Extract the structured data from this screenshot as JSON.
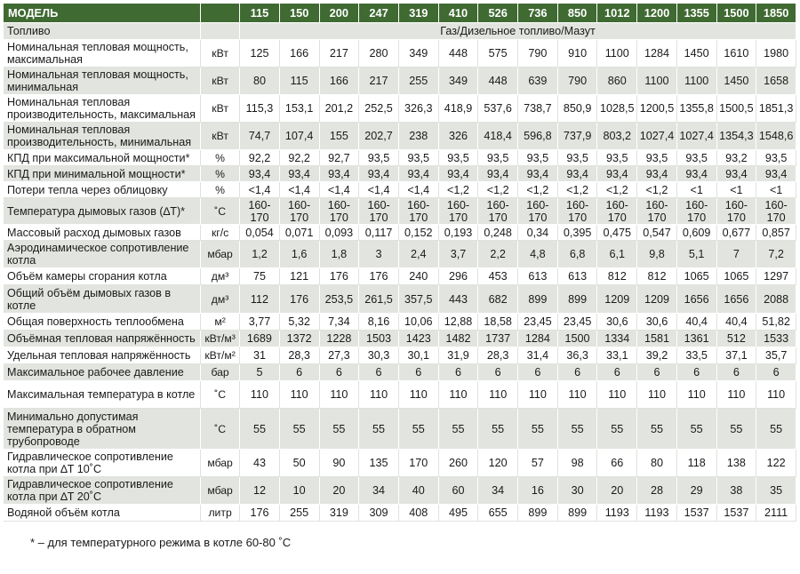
{
  "header": {
    "model_label": "МОДЕЛЬ",
    "models": [
      "115",
      "150",
      "200",
      "247",
      "319",
      "410",
      "526",
      "736",
      "850",
      "1012",
      "1200",
      "1355",
      "1500",
      "1850"
    ]
  },
  "fuel_row": {
    "label": "Топливо",
    "value": "Газ/Дизельное топливо/Мазут"
  },
  "rows": [
    {
      "label": "Номинальная тепловая мощность, максимальная",
      "unit": "кВт",
      "values": [
        "125",
        "166",
        "217",
        "280",
        "349",
        "448",
        "575",
        "790",
        "910",
        "1100",
        "1284",
        "1450",
        "1610",
        "1980"
      ]
    },
    {
      "label": "Номинальная тепловая мощность, минимальная",
      "unit": "кВт",
      "values": [
        "80",
        "115",
        "166",
        "217",
        "255",
        "349",
        "448",
        "639",
        "790",
        "860",
        "1100",
        "1100",
        "1450",
        "1658"
      ]
    },
    {
      "label": "Номинальная тепловая производительность, максимальная",
      "unit": "кВт",
      "values": [
        "115,3",
        "153,1",
        "201,2",
        "252,5",
        "326,3",
        "418,9",
        "537,6",
        "738,7",
        "850,9",
        "1028,5",
        "1200,5",
        "1355,8",
        "1500,5",
        "1851,3"
      ]
    },
    {
      "label": "Номинальная тепловая производительность, минимальная",
      "unit": "кВт",
      "values": [
        "74,7",
        "107,4",
        "155",
        "202,7",
        "238",
        "326",
        "418,4",
        "596,8",
        "737,9",
        "803,2",
        "1027,4",
        "1027,4",
        "1354,3",
        "1548,6"
      ]
    },
    {
      "label": "КПД при максимальной мощности*",
      "unit": "%",
      "values": [
        "92,2",
        "92,2",
        "92,7",
        "93,5",
        "93,5",
        "93,5",
        "93,5",
        "93,5",
        "93,5",
        "93,5",
        "93,5",
        "93,5",
        "93,2",
        "93,5"
      ]
    },
    {
      "label": "КПД при минимальной мощности*",
      "unit": "%",
      "values": [
        "93,4",
        "93,4",
        "93,4",
        "93,4",
        "93,4",
        "93,4",
        "93,4",
        "93,4",
        "93,4",
        "93,4",
        "93,4",
        "93,4",
        "93,4",
        "93,4"
      ]
    },
    {
      "label": "Потери тепла через облицовку",
      "unit": "%",
      "values": [
        "<1,4",
        "<1,4",
        "<1,4",
        "<1,4",
        "<1,4",
        "<1,2",
        "<1,2",
        "<1,2",
        "<1,2",
        "<1,2",
        "<1,2",
        "<1",
        "<1",
        "<1"
      ]
    },
    {
      "label": "Температура дымовых газов (∆T)*",
      "unit": "˚C",
      "values": [
        "160-170",
        "160-170",
        "160-170",
        "160-170",
        "160-170",
        "160-170",
        "160-170",
        "160-170",
        "160-170",
        "160-170",
        "160-170",
        "160-170",
        "160-170",
        "160-170"
      ]
    },
    {
      "label": "Массовый расход дымовых газов",
      "unit": "кг/с",
      "values": [
        "0,054",
        "0,071",
        "0,093",
        "0,117",
        "0,152",
        "0,193",
        "0,248",
        "0,34",
        "0,395",
        "0,475",
        "0,547",
        "0,609",
        "0,677",
        "0,857"
      ]
    },
    {
      "label": "Аэродинамическое сопротивление котла",
      "unit": "мбар",
      "values": [
        "1,2",
        "1,6",
        "1,8",
        "3",
        "2,4",
        "3,7",
        "2,2",
        "4,8",
        "6,8",
        "6,1",
        "9,8",
        "5,1",
        "7",
        "7,2"
      ]
    },
    {
      "label": "Объём камеры сгорания котла",
      "unit": "дм³",
      "values": [
        "75",
        "121",
        "176",
        "176",
        "240",
        "296",
        "453",
        "613",
        "613",
        "812",
        "812",
        "1065",
        "1065",
        "1297"
      ]
    },
    {
      "label": "Общий объём дымовых газов в котле",
      "unit": "дм³",
      "values": [
        "112",
        "176",
        "253,5",
        "261,5",
        "357,5",
        "443",
        "682",
        "899",
        "899",
        "1209",
        "1209",
        "1656",
        "1656",
        "2088"
      ]
    },
    {
      "label": "Общая поверхность теплообмена",
      "unit": "м²",
      "values": [
        "3,77",
        "5,32",
        "7,34",
        "8,16",
        "10,06",
        "12,88",
        "18,58",
        "23,45",
        "23,45",
        "30,6",
        "30,6",
        "40,4",
        "40,4",
        "51,82"
      ]
    },
    {
      "label": "Объёмная тепловая напряжённость",
      "unit": "кВт/м³",
      "values": [
        "1689",
        "1372",
        "1228",
        "1503",
        "1423",
        "1482",
        "1737",
        "1284",
        "1500",
        "1334",
        "1581",
        "1361",
        "512",
        "1533"
      ]
    },
    {
      "label": "Удельная тепловая напряжённость",
      "unit": "кВт/м²",
      "values": [
        "31",
        "28,3",
        "27,3",
        "30,3",
        "30,1",
        "31,9",
        "28,3",
        "31,4",
        "36,3",
        "33,1",
        "39,2",
        "33,5",
        "37,1",
        "35,7"
      ]
    },
    {
      "label": "Максимальное рабочее давление",
      "unit": "бар",
      "values": [
        "5",
        "6",
        "6",
        "6",
        "6",
        "6",
        "6",
        "6",
        "6",
        "6",
        "6",
        "6",
        "6",
        "6"
      ]
    },
    {
      "label": "Максимальная температура в котле",
      "unit": "˚C",
      "values": [
        "110",
        "110",
        "110",
        "110",
        "110",
        "110",
        "110",
        "110",
        "110",
        "110",
        "110",
        "110",
        "110",
        "110"
      ]
    },
    {
      "label": "Минимально допустимая температура в обратном трубопроводе",
      "unit": "˚C",
      "values": [
        "55",
        "55",
        "55",
        "55",
        "55",
        "55",
        "55",
        "55",
        "55",
        "55",
        "55",
        "55",
        "55",
        "55"
      ]
    },
    {
      "label": "Гидравлическое сопротивление котла при ∆T 10˚C",
      "unit": "мбар",
      "values": [
        "43",
        "50",
        "90",
        "135",
        "170",
        "260",
        "120",
        "57",
        "98",
        "66",
        "80",
        "118",
        "138",
        "122"
      ]
    },
    {
      "label": "Гидравлическое сопротивление котла при ∆T 20˚C",
      "unit": "мбар",
      "values": [
        "12",
        "10",
        "20",
        "34",
        "40",
        "60",
        "34",
        "16",
        "30",
        "20",
        "28",
        "29",
        "38",
        "35"
      ]
    },
    {
      "label": "Водяной объём котла",
      "unit": "литр",
      "values": [
        "176",
        "255",
        "319",
        "309",
        "408",
        "495",
        "655",
        "899",
        "899",
        "1193",
        "1193",
        "1537",
        "1537",
        "2111"
      ]
    }
  ],
  "footnote": "* – для температурного режима в котле 60-80 ˚C",
  "colors": {
    "header_bg": "#3f6a32",
    "header_text": "#ffffff",
    "row_shaded": "#e2e5df",
    "row_plain": "#ffffff"
  }
}
